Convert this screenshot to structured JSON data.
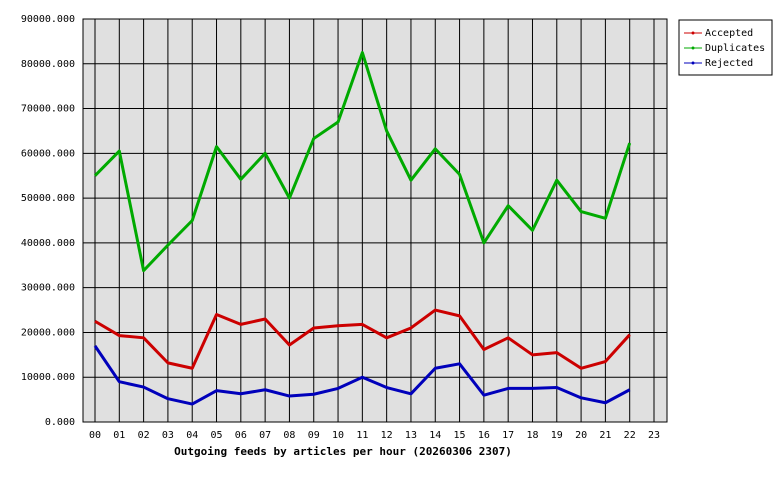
{
  "chart_data": {
    "type": "line",
    "title": "Outgoing feeds by articles per hour (20260306 2307)",
    "categories": [
      "00",
      "01",
      "02",
      "03",
      "04",
      "05",
      "06",
      "07",
      "08",
      "09",
      "10",
      "11",
      "12",
      "13",
      "14",
      "15",
      "16",
      "17",
      "18",
      "19",
      "20",
      "21",
      "22",
      "23"
    ],
    "series": [
      {
        "name": "Accepted",
        "color": "#cc0000",
        "values": [
          22500,
          19300,
          18800,
          13200,
          12000,
          24000,
          21800,
          23000,
          17200,
          21000,
          21500,
          21800,
          18800,
          21000,
          25000,
          23700,
          16200,
          18800,
          15000,
          15500,
          12000,
          13500,
          19500,
          null
        ]
      },
      {
        "name": "Duplicates",
        "color": "#00aa00",
        "values": [
          55000,
          60500,
          33800,
          39500,
          45000,
          61500,
          54200,
          60000,
          50000,
          63300,
          67000,
          82500,
          65000,
          54000,
          61000,
          55300,
          40000,
          48300,
          42800,
          54000,
          47000,
          45500,
          62300,
          null
        ]
      },
      {
        "name": "Rejected",
        "color": "#0000bb",
        "values": [
          17000,
          9000,
          7800,
          5200,
          4000,
          7000,
          6300,
          7200,
          5800,
          6200,
          7500,
          10000,
          7700,
          6300,
          12000,
          13000,
          6000,
          7500,
          7500,
          7700,
          5400,
          4300,
          7200,
          null
        ]
      }
    ],
    "ylim": [
      0,
      90000
    ],
    "yticks": [
      {
        "value": 0,
        "label": "0.000"
      },
      {
        "value": 10000,
        "label": "10000.000"
      },
      {
        "value": 20000,
        "label": "20000.000"
      },
      {
        "value": 30000,
        "label": "30000.000"
      },
      {
        "value": 40000,
        "label": "40000.000"
      },
      {
        "value": 50000,
        "label": "50000.000"
      },
      {
        "value": 60000,
        "label": "60000.000"
      },
      {
        "value": 70000,
        "label": "70000.000"
      },
      {
        "value": 80000,
        "label": "80000.000"
      },
      {
        "value": 90000,
        "label": "90000.000"
      }
    ],
    "grid": true,
    "legend": "right"
  }
}
